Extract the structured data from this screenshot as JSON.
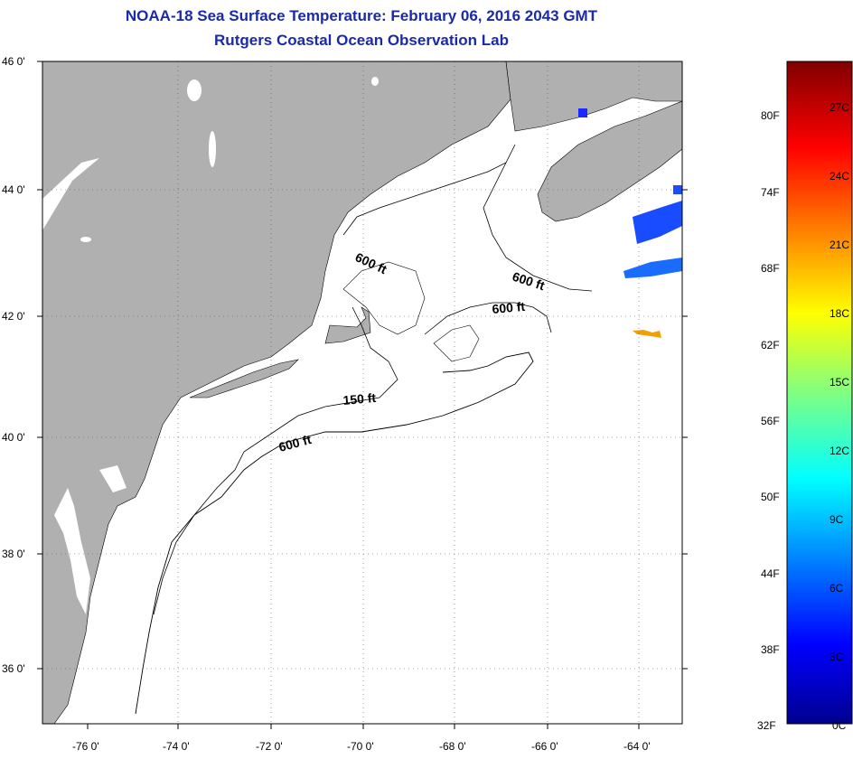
{
  "header": {
    "title": "NOAA-18 Sea Surface Temperature:  February 06, 2016 2043 GMT",
    "subtitle": "Rutgers Coastal Ocean Observation Lab"
  },
  "map": {
    "lat_labels": [
      "46 0'",
      "44 0'",
      "42 0'",
      "40 0'",
      "38 0'",
      "36 0'"
    ],
    "lon_labels": [
      "-76 0'",
      "-74 0'",
      "-72 0'",
      "-70 0'",
      "-68 0'",
      "-66 0'",
      "-64 0'"
    ],
    "contour_labels": [
      "600 ft",
      "600 ft",
      "600 ft",
      "150 ft",
      "600 ft"
    ],
    "land_color": "#b0b0b0",
    "ocean_color": "#ffffff"
  },
  "colorbar": {
    "fahrenheit_labels": [
      "80F",
      "74F",
      "68F",
      "62F",
      "56F",
      "50F",
      "44F",
      "38F",
      "32F"
    ],
    "celsius_labels": [
      "27C",
      "24C",
      "21C",
      "18C",
      "15C",
      "12C",
      "9C",
      "6C",
      "3C",
      "0C"
    ]
  }
}
